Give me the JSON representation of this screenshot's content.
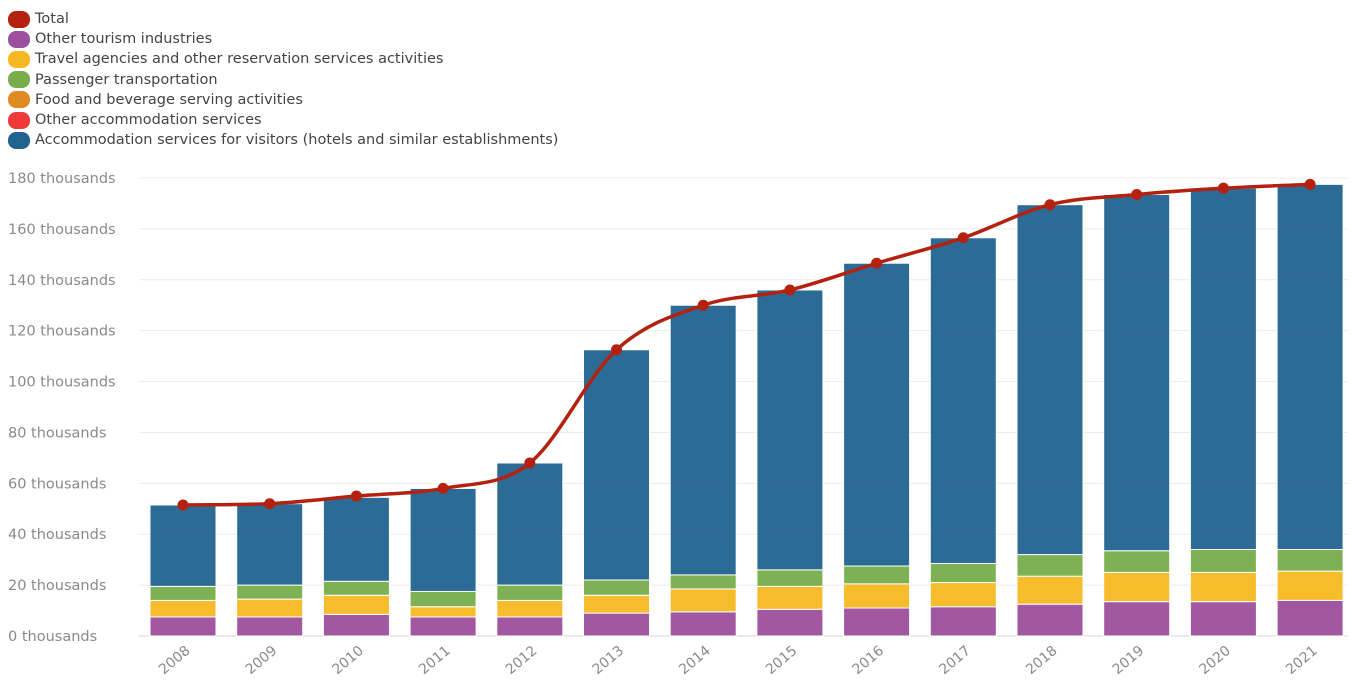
{
  "chart_data": {
    "type": "bar",
    "stacked": true,
    "categories": [
      "2008",
      "2009",
      "2010",
      "2011",
      "2012",
      "2013",
      "2014",
      "2015",
      "2016",
      "2017",
      "2018",
      "2019",
      "2020",
      "2021"
    ],
    "series": [
      {
        "name": "Other tourism industries",
        "color": "#9c4f9c",
        "values": [
          7.5,
          7.5,
          8.5,
          7.5,
          7.5,
          9,
          9.5,
          10.5,
          11,
          11.5,
          12.5,
          13.5,
          13.5,
          14
        ]
      },
      {
        "name": "Travel agencies and other reservation services activities",
        "color": "#f5b820",
        "values": [
          6.5,
          7,
          7.5,
          4,
          6.5,
          7,
          9,
          9,
          9.5,
          9.5,
          11,
          11.5,
          11.5,
          11.5
        ]
      },
      {
        "name": "Passenger transportation",
        "color": "#77ad4a",
        "values": [
          5.5,
          5.5,
          5.5,
          6,
          6,
          6,
          5.5,
          6.5,
          7,
          7.5,
          8.5,
          8.5,
          9,
          8.5
        ]
      },
      {
        "name": "Food and beverage serving activities",
        "color": "#e08a22",
        "values": [
          0,
          0,
          0,
          0,
          0,
          0,
          0,
          0,
          0,
          0,
          0,
          0,
          0,
          0
        ]
      },
      {
        "name": "Other accommodation services",
        "color": "#f03a3a",
        "values": [
          0,
          0,
          0,
          0,
          0,
          0,
          0,
          0,
          0,
          0,
          0,
          0,
          0,
          0
        ]
      },
      {
        "name": "Accommodation services for visitors (hotels and similar establishments)",
        "color": "#21638f",
        "values": [
          32,
          32,
          33,
          40.5,
          48,
          90.5,
          106,
          110,
          119,
          128,
          137.5,
          140,
          142,
          143.5
        ]
      }
    ],
    "line_series": {
      "name": "Total",
      "color": "#b4210f",
      "values": [
        51.5,
        52,
        55,
        58,
        68,
        112.5,
        130,
        136,
        146.5,
        156.5,
        169.5,
        173.5,
        176,
        177.5
      ]
    },
    "legend_order": [
      "Total",
      "Other tourism industries",
      "Travel agencies and other reservation services activities",
      "Passenger transportation",
      "Food and beverage serving activities",
      "Other accommodation services",
      "Accommodation services for visitors (hotels and similar establishments)"
    ],
    "legend_colors": [
      "#b4210f",
      "#9c4f9c",
      "#f5b820",
      "#77ad4a",
      "#e08a22",
      "#f03a3a",
      "#21638f"
    ],
    "y_ticks": [
      0,
      20,
      40,
      60,
      80,
      100,
      120,
      140,
      160,
      180
    ],
    "y_tick_labels": [
      "0 thousands",
      "20 thousands",
      "40 thousands",
      "60 thousands",
      "80 thousands",
      "100 thousands",
      "120 thousands",
      "140 thousands",
      "160 thousands",
      "180 thousands"
    ],
    "ylim": [
      0,
      180
    ],
    "grid": true,
    "legend_position": "top-left",
    "title": "",
    "xlabel": "",
    "ylabel": ""
  }
}
